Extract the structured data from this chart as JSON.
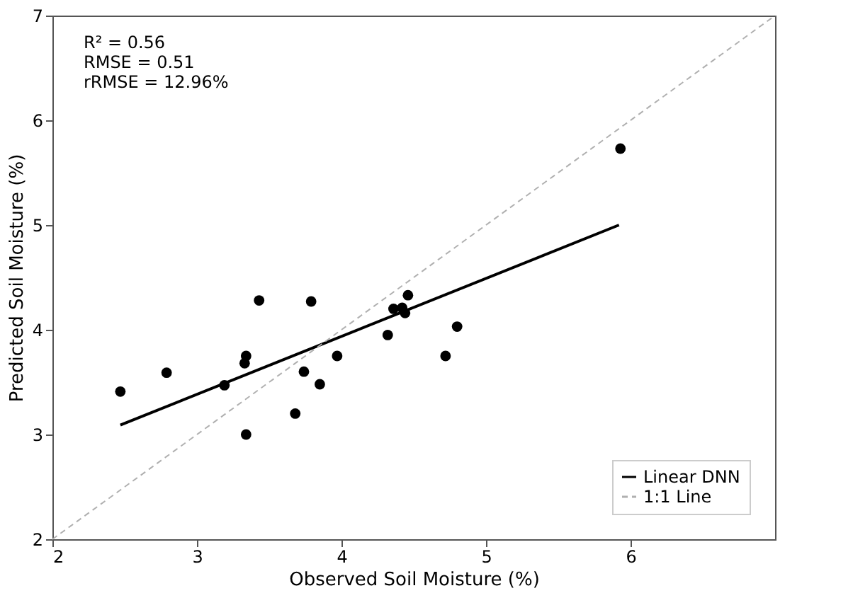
{
  "chart_data": {
    "type": "scatter",
    "xlabel": "Observed Soil Moisture (%)",
    "ylabel": "Predicted Soil Moisture (%)",
    "xlim": [
      2,
      7
    ],
    "ylim": [
      2,
      7
    ],
    "xticks": [
      2,
      3,
      4,
      5,
      6
    ],
    "yticks": [
      2,
      3,
      4,
      5,
      6,
      7
    ],
    "grid": false,
    "legend": "bottom right",
    "annotations": [
      "R² = 0.56",
      "RMSE = 0.51",
      "rRMSE = 12.96%"
    ],
    "series": [
      {
        "color": "#000000",
        "marker": "circle",
        "x": [
          2.47,
          2.79,
          3.19,
          3.34,
          3.33,
          3.34,
          3.43,
          3.68,
          3.79,
          3.74,
          3.85,
          3.97,
          4.32,
          4.36,
          4.42,
          4.46,
          4.44,
          4.72,
          4.8,
          5.93
        ],
        "values": [
          3.41,
          3.59,
          3.47,
          3.75,
          3.68,
          3.0,
          4.28,
          3.2,
          4.27,
          3.6,
          3.48,
          3.75,
          3.95,
          4.2,
          4.21,
          4.33,
          4.16,
          3.75,
          4.03,
          5.73
        ]
      },
      {
        "type": "line",
        "name": "Linear DNN",
        "color": "#000000",
        "line_style": "solid",
        "x": [
          2.47,
          5.92
        ],
        "values": [
          3.09,
          5.0
        ]
      },
      {
        "type": "line",
        "name": "1:1 Line",
        "color": "#b0b0b0",
        "line_style": "dashed",
        "x": [
          2,
          7
        ],
        "values": [
          2,
          7
        ]
      }
    ]
  }
}
